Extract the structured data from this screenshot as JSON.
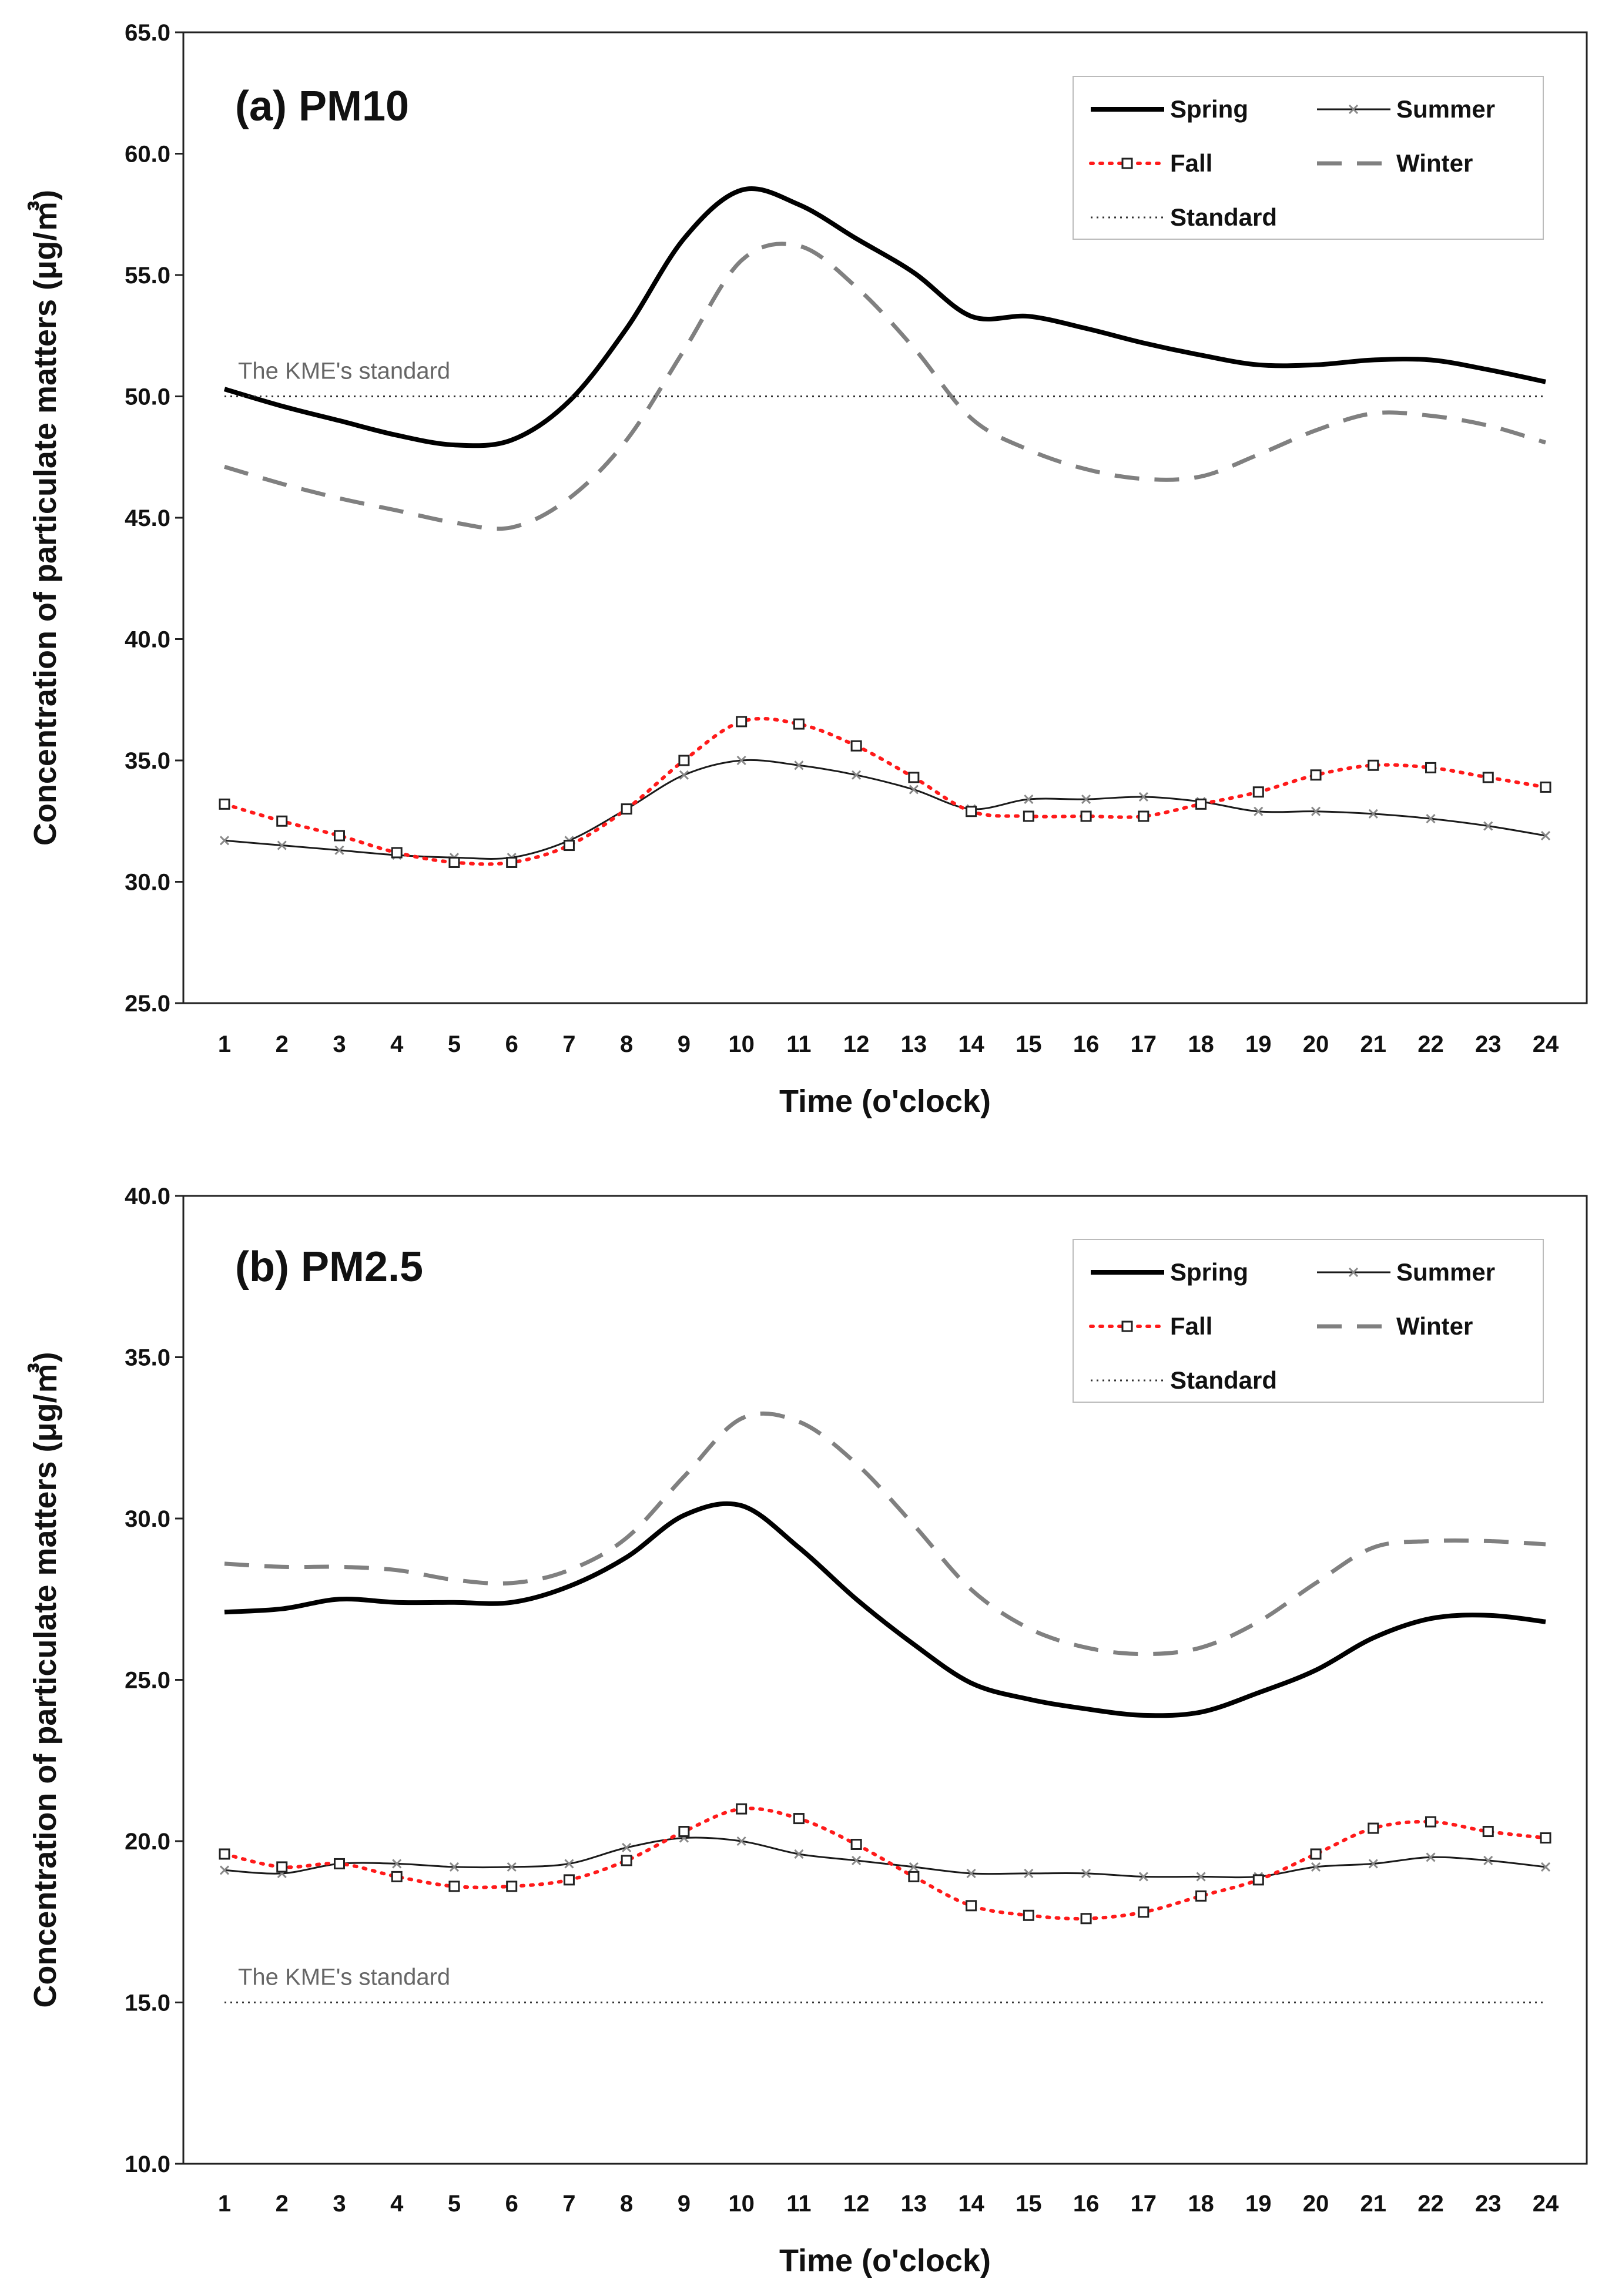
{
  "chart_data": [
    {
      "type": "line",
      "title": "(a) PM10",
      "xlabel": "Time (o'clock)",
      "ylabel": "Concentration of particulate matters (μg/㎥)",
      "ylim": [
        25.0,
        65.0
      ],
      "yticks": [
        "25.0",
        "30.0",
        "35.0",
        "40.0",
        "45.0",
        "50.0",
        "55.0",
        "60.0",
        "65.0"
      ],
      "x": [
        1,
        2,
        3,
        4,
        5,
        6,
        7,
        8,
        9,
        10,
        11,
        12,
        13,
        14,
        15,
        16,
        17,
        18,
        19,
        20,
        21,
        22,
        23,
        24
      ],
      "series": [
        {
          "name": "Spring",
          "values": [
            50.3,
            49.6,
            49.0,
            48.4,
            48.0,
            48.2,
            49.8,
            52.8,
            56.5,
            58.5,
            57.9,
            56.5,
            55.1,
            53.3,
            53.3,
            52.8,
            52.2,
            51.7,
            51.3,
            51.3,
            51.5,
            51.5,
            51.1,
            50.6
          ]
        },
        {
          "name": "Summer",
          "values": [
            31.7,
            31.5,
            31.3,
            31.1,
            31.0,
            31.0,
            31.7,
            33.0,
            34.4,
            35.0,
            34.8,
            34.4,
            33.8,
            33.0,
            33.4,
            33.4,
            33.5,
            33.3,
            32.9,
            32.9,
            32.8,
            32.6,
            32.3,
            31.9
          ]
        },
        {
          "name": "Fall",
          "values": [
            33.2,
            32.5,
            31.9,
            31.2,
            30.8,
            30.8,
            31.5,
            33.0,
            35.0,
            36.6,
            36.5,
            35.6,
            34.3,
            32.9,
            32.7,
            32.7,
            32.7,
            33.2,
            33.7,
            34.4,
            34.8,
            34.7,
            34.3,
            33.9
          ]
        },
        {
          "name": "Winter",
          "values": [
            47.1,
            46.4,
            45.8,
            45.3,
            44.8,
            44.6,
            45.8,
            48.2,
            51.9,
            55.6,
            56.2,
            54.5,
            52.0,
            49.1,
            47.8,
            47.0,
            46.6,
            46.7,
            47.6,
            48.6,
            49.3,
            49.2,
            48.8,
            48.1
          ]
        },
        {
          "name": "Standard",
          "values": [
            50.0,
            50.0,
            50.0,
            50.0,
            50.0,
            50.0,
            50.0,
            50.0,
            50.0,
            50.0,
            50.0,
            50.0,
            50.0,
            50.0,
            50.0,
            50.0,
            50.0,
            50.0,
            50.0,
            50.0,
            50.0,
            50.0,
            50.0,
            50.0
          ]
        }
      ],
      "standard_value": 50.0,
      "annotation": "The KME's standard",
      "legend": [
        "Spring",
        "Summer",
        "Fall",
        "Winter",
        "Standard"
      ],
      "legend_position": "top-right",
      "grid": false
    },
    {
      "type": "line",
      "title": "(b) PM2.5",
      "xlabel": "Time (o'clock)",
      "ylabel": "Concentration of particulate matters (μg/㎥)",
      "ylim": [
        10.0,
        40.0
      ],
      "yticks": [
        "10.0",
        "15.0",
        "20.0",
        "25.0",
        "30.0",
        "35.0",
        "40.0"
      ],
      "x": [
        1,
        2,
        3,
        4,
        5,
        6,
        7,
        8,
        9,
        10,
        11,
        12,
        13,
        14,
        15,
        16,
        17,
        18,
        19,
        20,
        21,
        22,
        23,
        24
      ],
      "series": [
        {
          "name": "Spring",
          "values": [
            27.1,
            27.2,
            27.5,
            27.4,
            27.4,
            27.4,
            27.9,
            28.8,
            30.1,
            30.4,
            29.1,
            27.5,
            26.1,
            24.9,
            24.4,
            24.1,
            23.9,
            24.0,
            24.6,
            25.3,
            26.3,
            26.9,
            27.0,
            26.8
          ]
        },
        {
          "name": "Summer",
          "values": [
            19.1,
            19.0,
            19.3,
            19.3,
            19.2,
            19.2,
            19.3,
            19.8,
            20.1,
            20.0,
            19.6,
            19.4,
            19.2,
            19.0,
            19.0,
            19.0,
            18.9,
            18.9,
            18.9,
            19.2,
            19.3,
            19.5,
            19.4,
            19.2
          ]
        },
        {
          "name": "Fall",
          "values": [
            19.6,
            19.2,
            19.3,
            18.9,
            18.6,
            18.6,
            18.8,
            19.4,
            20.3,
            21.0,
            20.7,
            19.9,
            18.9,
            18.0,
            17.7,
            17.6,
            17.8,
            18.3,
            18.8,
            19.6,
            20.4,
            20.6,
            20.3,
            20.1
          ]
        },
        {
          "name": "Winter",
          "values": [
            28.6,
            28.5,
            28.5,
            28.4,
            28.1,
            28.0,
            28.4,
            29.4,
            31.3,
            33.1,
            33.0,
            31.7,
            29.8,
            27.8,
            26.6,
            26.0,
            25.8,
            26.0,
            26.8,
            28.0,
            29.1,
            29.3,
            29.3,
            29.2
          ]
        },
        {
          "name": "Standard",
          "values": [
            15.0,
            15.0,
            15.0,
            15.0,
            15.0,
            15.0,
            15.0,
            15.0,
            15.0,
            15.0,
            15.0,
            15.0,
            15.0,
            15.0,
            15.0,
            15.0,
            15.0,
            15.0,
            15.0,
            15.0,
            15.0,
            15.0,
            15.0,
            15.0
          ]
        }
      ],
      "standard_value": 15.0,
      "annotation": "The KME's standard",
      "legend": [
        "Spring",
        "Summer",
        "Fall",
        "Winter",
        "Standard"
      ],
      "legend_position": "top-right",
      "grid": false
    }
  ]
}
